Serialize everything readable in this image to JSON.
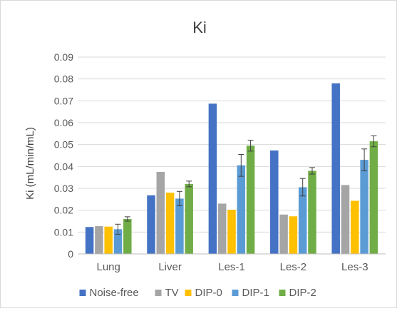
{
  "chart_data": {
    "type": "bar",
    "title": "Ki",
    "xlabel": "",
    "ylabel": "Ki (mL/min/mL)",
    "ylim": [
      0,
      0.09
    ],
    "yticks": [
      "0",
      "0.01",
      "0.02",
      "0.03",
      "0.04",
      "0.05",
      "0.06",
      "0.07",
      "0.08",
      "0.09"
    ],
    "grid": true,
    "legend_position": "bottom",
    "categories": [
      "Lung",
      "Liver",
      "Les-1",
      "Les-2",
      "Les-3"
    ],
    "series": [
      {
        "name": "Noise-free",
        "color": "#4472C4",
        "values": [
          0.0123,
          0.0268,
          0.0687,
          0.0473,
          0.078
        ],
        "errors": null
      },
      {
        "name": "TV",
        "color": "#A5A5A5",
        "values": [
          0.0127,
          0.0375,
          0.023,
          0.018,
          0.0315
        ],
        "errors": null
      },
      {
        "name": "DIP-0",
        "color": "#FFC000",
        "values": [
          0.0125,
          0.028,
          0.0202,
          0.0172,
          0.0243
        ],
        "errors": null
      },
      {
        "name": "DIP-1",
        "color": "#5B9BD5",
        "values": [
          0.0113,
          0.0253,
          0.0405,
          0.0305,
          0.043
        ],
        "errors": [
          0.0023,
          0.0033,
          0.005,
          0.004,
          0.005
        ]
      },
      {
        "name": "DIP-2",
        "color": "#70AD47",
        "values": [
          0.016,
          0.032,
          0.0495,
          0.038,
          0.0515
        ],
        "errors": [
          0.001,
          0.0013,
          0.0025,
          0.0015,
          0.0025
        ]
      }
    ]
  }
}
